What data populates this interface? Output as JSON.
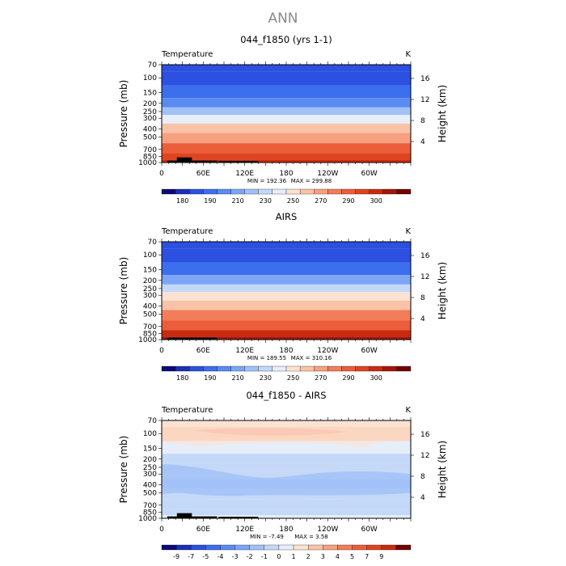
{
  "figure": {
    "title": "ANN"
  },
  "colors": {
    "temp_scale": [
      "#0a0a7a",
      "#1b2fb8",
      "#2c50e0",
      "#3c6fee",
      "#5a8bf2",
      "#7ca6f5",
      "#a1c1f7",
      "#c4d8f8",
      "#e6eefa",
      "#fbe2d2",
      "#f9c3a8",
      "#f6a07f",
      "#f27d5a",
      "#ec5d3a",
      "#e0441f",
      "#c92b10",
      "#a41607",
      "#700303"
    ],
    "diff_scale": [
      "#0a0a7a",
      "#1b2fb8",
      "#2c50e0",
      "#3c6fee",
      "#5a8bf2",
      "#7ca6f5",
      "#a1c1f7",
      "#c4d8f8",
      "#e6eefa",
      "#fbe2d2",
      "#f9c3a8",
      "#f6a07f",
      "#f27d5a",
      "#ec5d3a",
      "#e0441f",
      "#c92b10",
      "#700303"
    ]
  },
  "chart_data": [
    {
      "type": "heatmap",
      "title": "044_f1850 (yrs 1-1)",
      "variable": "Temperature",
      "units": "K",
      "ylabel": "Pressure (mb)",
      "y2label": "Height (km)",
      "yticks": [
        70,
        100,
        150,
        200,
        250,
        300,
        400,
        500,
        700,
        850,
        1000
      ],
      "y2ticks": [
        4,
        8,
        12,
        16
      ],
      "xticks": [
        "0",
        "60E",
        "120E",
        "180",
        "120W",
        "60W"
      ],
      "ylim": [
        1000,
        70
      ],
      "xlim": [
        0,
        360
      ],
      "min_text": "MIN = 192.36",
      "max_text": "MAX = 299.88",
      "colorbar_labels": [
        "180",
        "190",
        "210",
        "230",
        "250",
        "270",
        "290",
        "300"
      ],
      "profile_levels": [
        {
          "p": 70,
          "bin": 2
        },
        {
          "p": 100,
          "bin": 2
        },
        {
          "p": 150,
          "bin": 3
        },
        {
          "p": 200,
          "bin": 4
        },
        {
          "p": 250,
          "bin": 6
        },
        {
          "p": 300,
          "bin": 8
        },
        {
          "p": 400,
          "bin": 10
        },
        {
          "p": 500,
          "bin": 11
        },
        {
          "p": 700,
          "bin": 13
        },
        {
          "p": 850,
          "bin": 14
        },
        {
          "p": 1000,
          "bin": 15
        }
      ]
    },
    {
      "type": "heatmap",
      "title": "AIRS",
      "variable": "Temperature",
      "units": "K",
      "ylabel": "Pressure (mb)",
      "y2label": "Height (km)",
      "yticks": [
        70,
        100,
        150,
        200,
        250,
        300,
        400,
        500,
        700,
        850,
        1000
      ],
      "y2ticks": [
        4,
        8,
        12,
        16
      ],
      "xticks": [
        "0",
        "60E",
        "120E",
        "180",
        "120W",
        "60W"
      ],
      "ylim": [
        1000,
        70
      ],
      "xlim": [
        0,
        360
      ],
      "min_text": "MIN = 189.55",
      "max_text": "MAX = 310.16",
      "colorbar_labels": [
        "180",
        "190",
        "210",
        "230",
        "250",
        "270",
        "290",
        "300"
      ],
      "profile_levels": [
        {
          "p": 70,
          "bin": 2
        },
        {
          "p": 100,
          "bin": 2
        },
        {
          "p": 150,
          "bin": 3
        },
        {
          "p": 200,
          "bin": 5
        },
        {
          "p": 250,
          "bin": 7
        },
        {
          "p": 300,
          "bin": 9
        },
        {
          "p": 400,
          "bin": 10
        },
        {
          "p": 500,
          "bin": 12
        },
        {
          "p": 700,
          "bin": 13
        },
        {
          "p": 850,
          "bin": 15
        },
        {
          "p": 1000,
          "bin": 16
        }
      ]
    },
    {
      "type": "heatmap",
      "title": "044_f1850 - AIRS",
      "variable": "Temperature",
      "units": "K",
      "ylabel": "Pressure (mb)",
      "y2label": "Height (km)",
      "yticks": [
        70,
        100,
        150,
        200,
        250,
        300,
        400,
        500,
        700,
        850,
        1000
      ],
      "y2ticks": [
        4,
        8,
        12,
        16
      ],
      "xticks": [
        "0",
        "60E",
        "120E",
        "180",
        "120W",
        "60W"
      ],
      "ylim": [
        1000,
        70
      ],
      "xlim": [
        0,
        360
      ],
      "min_text": "MIN = -7.49",
      "max_text": "MAX = 3.58",
      "colorbar_labels": [
        "-9",
        "-7",
        "-5",
        "-4",
        "-3",
        "-2",
        "-1",
        "0",
        "1",
        "2",
        "3",
        "4",
        "5",
        "7",
        "9"
      ],
      "profile_levels": [
        {
          "p": 70,
          "bin": 9
        },
        {
          "p": 100,
          "bin": 10
        },
        {
          "p": 150,
          "bin": 8
        },
        {
          "p": 200,
          "bin": 7
        },
        {
          "p": 250,
          "bin": 7
        },
        {
          "p": 300,
          "bin": 7
        },
        {
          "p": 400,
          "bin": 6
        },
        {
          "p": 500,
          "bin": 7
        },
        {
          "p": 700,
          "bin": 7
        },
        {
          "p": 850,
          "bin": 7
        },
        {
          "p": 1000,
          "bin": 8
        }
      ]
    }
  ]
}
